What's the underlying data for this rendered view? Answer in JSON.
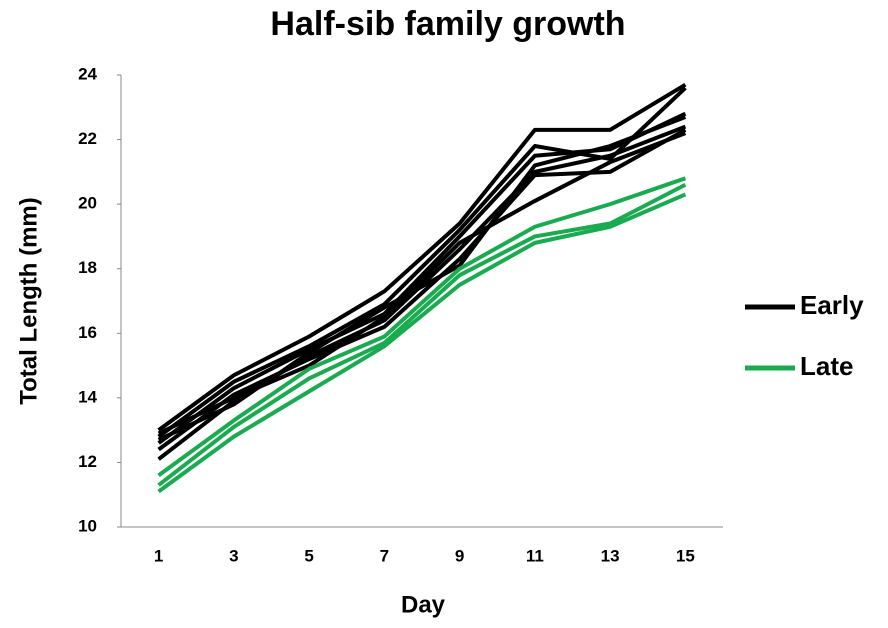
{
  "chart_data": {
    "type": "line",
    "title": "Half-sib family growth",
    "x_label": "Day",
    "y_label": "Total Length (mm)",
    "x": [
      1,
      3,
      5,
      7,
      9,
      11,
      13,
      15
    ],
    "xlim": [
      0,
      16
    ],
    "xticks": [
      1,
      3,
      5,
      7,
      9,
      11,
      13,
      15
    ],
    "ylim": [
      10,
      24
    ],
    "yticks": [
      10,
      12,
      14,
      16,
      18,
      20,
      22,
      24
    ],
    "grid": false,
    "legend": "right",
    "series": [
      {
        "name": "Early",
        "color": "#000000",
        "lines": [
          {
            "values": [
              13.0,
              14.7,
              15.9,
              17.3,
              19.4,
              22.3,
              22.3,
              23.7
            ]
          },
          {
            "values": [
              12.8,
              14.5,
              15.6,
              16.9,
              19.2,
              21.8,
              21.4,
              23.6
            ]
          },
          {
            "values": [
              12.6,
              14.3,
              15.5,
              16.6,
              19.0,
              21.5,
              21.7,
              22.8
            ]
          },
          {
            "values": [
              12.1,
              13.9,
              15.3,
              16.4,
              18.6,
              21.0,
              21.5,
              22.4
            ]
          },
          {
            "values": [
              12.4,
              14.1,
              15.2,
              16.2,
              18.3,
              20.9,
              21.0,
              22.3
            ]
          },
          {
            "values": [
              12.9,
              14.0,
              15.0,
              16.5,
              18.8,
              20.1,
              21.3,
              22.2
            ]
          },
          {
            "values": [
              12.7,
              13.8,
              15.4,
              16.8,
              18.1,
              21.2,
              21.8,
              22.7
            ]
          }
        ]
      },
      {
        "name": "Late",
        "color": "#1aaa50",
        "lines": [
          {
            "values": [
              11.6,
              13.3,
              14.9,
              15.9,
              18.0,
              19.3,
              20.0,
              20.8
            ]
          },
          {
            "values": [
              11.3,
              13.1,
              14.6,
              15.7,
              17.8,
              19.0,
              19.4,
              20.6
            ]
          },
          {
            "values": [
              11.1,
              12.8,
              14.2,
              15.6,
              17.5,
              18.8,
              19.3,
              20.3
            ]
          }
        ]
      }
    ]
  }
}
